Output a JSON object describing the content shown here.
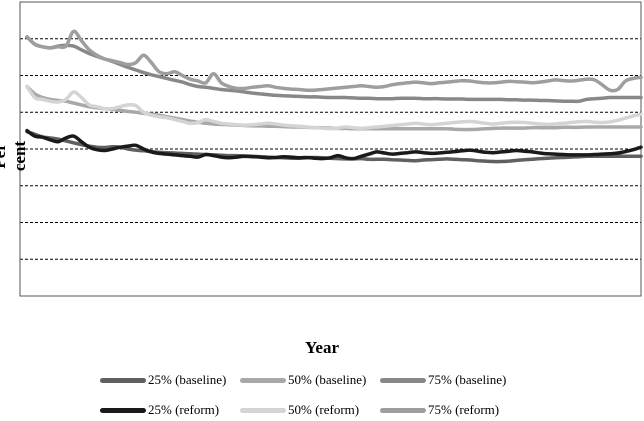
{
  "chart_data": {
    "type": "line",
    "title": "",
    "xlabel": "Year",
    "ylabel": "Per cent",
    "ylim": [
      0,
      8
    ],
    "x": [
      0,
      1,
      2,
      3,
      4,
      5,
      6,
      7,
      8,
      9,
      10,
      11,
      12,
      13,
      14,
      15,
      16,
      17,
      18,
      19,
      20,
      21,
      22,
      23,
      24,
      25,
      26,
      27,
      28,
      29,
      30,
      31,
      32,
      33,
      34,
      35,
      36,
      37,
      38,
      39,
      40,
      41,
      42,
      43,
      44,
      45,
      46,
      47,
      48,
      49,
      50,
      51,
      52,
      53,
      54,
      55,
      56,
      57,
      58,
      59,
      60,
      61,
      62,
      63,
      64,
      65,
      66,
      67,
      68,
      69,
      70,
      71,
      72,
      73,
      74,
      75,
      76,
      77,
      78,
      79
    ],
    "grid": true,
    "legend_position": "bottom",
    "series": [
      {
        "name": "25% (baseline)",
        "color": "#606060",
        "width": 3.5,
        "values": [
          4.47,
          4.4,
          4.33,
          4.3,
          4.27,
          4.22,
          4.17,
          4.12,
          4.08,
          4.05,
          4.04,
          4.06,
          4.05,
          4.0,
          3.97,
          3.95,
          3.93,
          3.91,
          3.9,
          3.89,
          3.88,
          3.87,
          3.86,
          3.85,
          3.84,
          3.83,
          3.82,
          3.82,
          3.81,
          3.8,
          3.79,
          3.78,
          3.77,
          3.76,
          3.75,
          3.75,
          3.76,
          3.77,
          3.76,
          3.75,
          3.74,
          3.73,
          3.73,
          3.74,
          3.72,
          3.72,
          3.72,
          3.71,
          3.7,
          3.69,
          3.68,
          3.7,
          3.71,
          3.72,
          3.73,
          3.72,
          3.71,
          3.7,
          3.68,
          3.67,
          3.66,
          3.66,
          3.67,
          3.69,
          3.71,
          3.72,
          3.74,
          3.75,
          3.76,
          3.77,
          3.78,
          3.79,
          3.8,
          3.8,
          3.8,
          3.8,
          3.8,
          3.8,
          3.8,
          3.8
        ]
      },
      {
        "name": "50% (baseline)",
        "color": "#a8a8a8",
        "width": 3.5,
        "values": [
          5.7,
          5.5,
          5.4,
          5.35,
          5.32,
          5.3,
          5.25,
          5.2,
          5.15,
          5.12,
          5.1,
          5.08,
          5.05,
          5.02,
          5.0,
          4.97,
          4.95,
          4.92,
          4.88,
          4.84,
          4.8,
          4.76,
          4.73,
          4.7,
          4.68,
          4.67,
          4.66,
          4.65,
          4.64,
          4.63,
          4.63,
          4.62,
          4.62,
          4.61,
          4.6,
          4.6,
          4.59,
          4.58,
          4.58,
          4.57,
          4.56,
          4.56,
          4.55,
          4.55,
          4.55,
          4.55,
          4.55,
          4.55,
          4.55,
          4.55,
          4.55,
          4.55,
          4.55,
          4.55,
          4.55,
          4.54,
          4.53,
          4.53,
          4.54,
          4.55,
          4.56,
          4.57,
          4.57,
          4.57,
          4.57,
          4.58,
          4.58,
          4.58,
          4.58,
          4.59,
          4.59,
          4.59,
          4.6,
          4.6,
          4.6,
          4.6,
          4.6,
          4.6,
          4.6,
          4.6
        ]
      },
      {
        "name": "75% (baseline)",
        "color": "#888888",
        "width": 3.5,
        "values": [
          7.05,
          6.85,
          6.78,
          6.75,
          6.8,
          6.82,
          6.8,
          6.7,
          6.6,
          6.52,
          6.45,
          6.38,
          6.3,
          6.22,
          6.15,
          6.08,
          6.02,
          5.97,
          5.92,
          5.87,
          5.82,
          5.75,
          5.7,
          5.68,
          5.65,
          5.62,
          5.6,
          5.58,
          5.55,
          5.52,
          5.5,
          5.48,
          5.46,
          5.45,
          5.44,
          5.43,
          5.42,
          5.42,
          5.41,
          5.4,
          5.4,
          5.4,
          5.39,
          5.38,
          5.38,
          5.37,
          5.37,
          5.37,
          5.38,
          5.38,
          5.38,
          5.37,
          5.37,
          5.37,
          5.36,
          5.36,
          5.36,
          5.35,
          5.35,
          5.35,
          5.35,
          5.35,
          5.34,
          5.34,
          5.33,
          5.33,
          5.32,
          5.32,
          5.31,
          5.3,
          5.3,
          5.3,
          5.35,
          5.37,
          5.38,
          5.4,
          5.4,
          5.4,
          5.4,
          5.4
        ]
      },
      {
        "name": "25% (reform)",
        "color": "#1a1a1a",
        "width": 3.5,
        "values": [
          4.5,
          4.35,
          4.32,
          4.25,
          4.2,
          4.3,
          4.35,
          4.2,
          4.05,
          3.98,
          3.96,
          4.0,
          4.05,
          4.08,
          4.1,
          4.0,
          3.92,
          3.88,
          3.86,
          3.84,
          3.82,
          3.8,
          3.78,
          3.85,
          3.82,
          3.78,
          3.76,
          3.78,
          3.8,
          3.79,
          3.78,
          3.76,
          3.77,
          3.79,
          3.78,
          3.76,
          3.77,
          3.75,
          3.74,
          3.76,
          3.82,
          3.76,
          3.74,
          3.8,
          3.86,
          3.92,
          3.89,
          3.86,
          3.88,
          3.9,
          3.92,
          3.9,
          3.88,
          3.89,
          3.91,
          3.93,
          3.95,
          3.97,
          3.94,
          3.91,
          3.9,
          3.92,
          3.94,
          3.96,
          3.94,
          3.92,
          3.89,
          3.87,
          3.86,
          3.85,
          3.84,
          3.84,
          3.84,
          3.85,
          3.86,
          3.87,
          3.89,
          3.93,
          3.98,
          4.05
        ]
      },
      {
        "name": "50% (reform)",
        "color": "#d4d4d4",
        "width": 3.5,
        "values": [
          5.7,
          5.4,
          5.35,
          5.3,
          5.28,
          5.35,
          5.55,
          5.4,
          5.2,
          5.15,
          5.1,
          5.1,
          5.15,
          5.2,
          5.18,
          5.0,
          4.92,
          4.88,
          4.85,
          4.8,
          4.75,
          4.7,
          4.72,
          4.8,
          4.75,
          4.7,
          4.68,
          4.66,
          4.65,
          4.66,
          4.68,
          4.7,
          4.68,
          4.65,
          4.63,
          4.62,
          4.6,
          4.58,
          4.57,
          4.55,
          4.57,
          4.6,
          4.58,
          4.56,
          4.58,
          4.6,
          4.62,
          4.64,
          4.66,
          4.68,
          4.7,
          4.68,
          4.66,
          4.68,
          4.7,
          4.72,
          4.74,
          4.75,
          4.73,
          4.7,
          4.68,
          4.7,
          4.72,
          4.73,
          4.72,
          4.7,
          4.68,
          4.67,
          4.68,
          4.7,
          4.72,
          4.74,
          4.75,
          4.73,
          4.72,
          4.74,
          4.78,
          4.84,
          4.9,
          4.95
        ]
      },
      {
        "name": "75% (reform)",
        "color": "#9e9e9e",
        "width": 3.5,
        "values": [
          7.05,
          6.85,
          6.78,
          6.75,
          6.78,
          6.8,
          7.2,
          6.95,
          6.7,
          6.55,
          6.45,
          6.4,
          6.35,
          6.3,
          6.35,
          6.55,
          6.35,
          6.1,
          6.05,
          6.1,
          6.0,
          5.9,
          5.85,
          5.8,
          6.05,
          5.8,
          5.7,
          5.65,
          5.65,
          5.68,
          5.7,
          5.72,
          5.68,
          5.65,
          5.63,
          5.62,
          5.6,
          5.6,
          5.62,
          5.64,
          5.66,
          5.68,
          5.7,
          5.72,
          5.7,
          5.68,
          5.7,
          5.75,
          5.78,
          5.8,
          5.82,
          5.8,
          5.78,
          5.8,
          5.82,
          5.84,
          5.86,
          5.85,
          5.82,
          5.8,
          5.8,
          5.82,
          5.84,
          5.83,
          5.82,
          5.8,
          5.82,
          5.85,
          5.88,
          5.86,
          5.85,
          5.87,
          5.9,
          5.88,
          5.75,
          5.6,
          5.62,
          5.85,
          5.92,
          5.95
        ]
      }
    ]
  }
}
